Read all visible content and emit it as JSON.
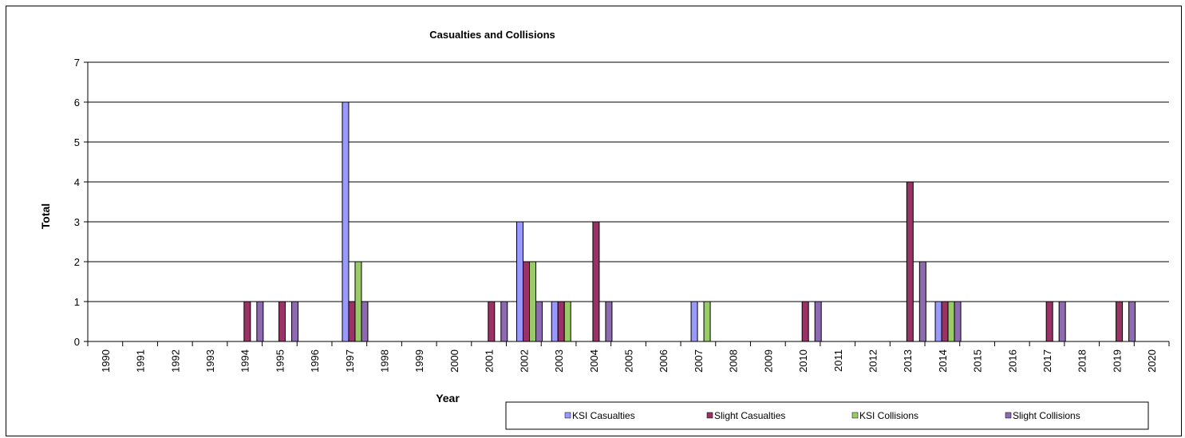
{
  "chart_data": {
    "type": "bar",
    "title": "Casualties and Collisions",
    "xlabel": "Year",
    "ylabel": "Total",
    "ylim": [
      0,
      7
    ],
    "yticks": [
      "0",
      "1",
      "2",
      "3",
      "4",
      "5",
      "6",
      "7"
    ],
    "grid": true,
    "legend_position": "bottom-right",
    "categories": [
      "1990",
      "1991",
      "1992",
      "1993",
      "1994",
      "1995",
      "1996",
      "1997",
      "1998",
      "1999",
      "2000",
      "2001",
      "2002",
      "2003",
      "2004",
      "2005",
      "2006",
      "2007",
      "2008",
      "2009",
      "2010",
      "2011",
      "2012",
      "2013",
      "2014",
      "2015",
      "2016",
      "2017",
      "2018",
      "2019",
      "2020"
    ],
    "series": [
      {
        "name": "KSI Casualties",
        "color": "#9999ff",
        "values": [
          0,
          0,
          0,
          0,
          0,
          0,
          0,
          6,
          0,
          0,
          0,
          0,
          3,
          1,
          0,
          0,
          0,
          1,
          0,
          0,
          0,
          0,
          0,
          0,
          1,
          0,
          0,
          0,
          0,
          0,
          0
        ]
      },
      {
        "name": "Slight Casualties",
        "color": "#993366",
        "values": [
          0,
          0,
          0,
          0,
          1,
          1,
          0,
          1,
          0,
          0,
          0,
          1,
          2,
          1,
          3,
          0,
          0,
          0,
          0,
          0,
          1,
          0,
          0,
          4,
          1,
          0,
          0,
          1,
          0,
          1,
          0
        ]
      },
      {
        "name": "KSI Collisions",
        "color": "#99cc66",
        "values": [
          0,
          0,
          0,
          0,
          0,
          0,
          0,
          2,
          0,
          0,
          0,
          0,
          2,
          1,
          0,
          0,
          0,
          1,
          0,
          0,
          0,
          0,
          0,
          0,
          1,
          0,
          0,
          0,
          0,
          0,
          0
        ]
      },
      {
        "name": "Slight Collisions",
        "color": "#8e6bb0",
        "values": [
          0,
          0,
          0,
          0,
          1,
          1,
          0,
          1,
          0,
          0,
          0,
          1,
          1,
          0,
          1,
          0,
          0,
          0,
          0,
          0,
          1,
          0,
          0,
          2,
          1,
          0,
          0,
          1,
          0,
          1,
          0
        ]
      }
    ]
  }
}
